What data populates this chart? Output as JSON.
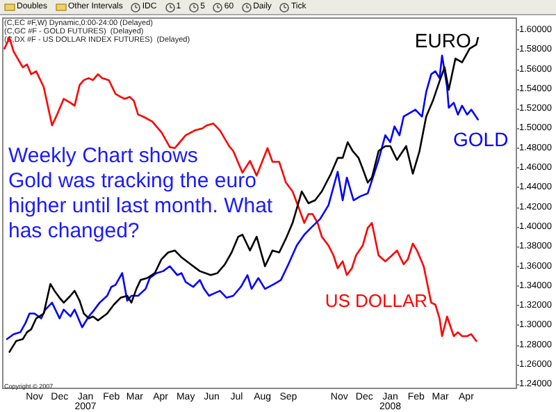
{
  "chart_data": {
    "type": "line",
    "annotations": [
      "(C,EC #F,W) Dynamic,0:00-24:00 (Delayed)",
      "(C,GC #F - GOLD FUTURES)  (Delayed)",
      "(C,DX #F - US DOLLAR INDEX FUTURES)  (Delayed)",
      "Weekly Chart shows\nGold was tracking the euro\nhigher until last month. What\nhas changed?",
      "Copyright © 2007",
      "Doubles",
      "Other Intervals",
      "IDC",
      "1",
      "5",
      "60",
      "Daily",
      "Tick"
    ],
    "xlim": [
      "2006-09-24",
      "2008-05-31"
    ],
    "xticks": [
      {
        "value": "2006-11-01",
        "label": "Nov"
      },
      {
        "value": "2006-12-01",
        "label": "Dec"
      },
      {
        "value": "2007-01-01",
        "label": "Jan\n2007"
      },
      {
        "value": "2007-02-01",
        "label": "Feb"
      },
      {
        "value": "2007-03-01",
        "label": "Mar"
      },
      {
        "value": "2007-04-01",
        "label": "Apr"
      },
      {
        "value": "2007-05-01",
        "label": "May"
      },
      {
        "value": "2007-06-01",
        "label": "Jun"
      },
      {
        "value": "2007-07-01",
        "label": "Jul"
      },
      {
        "value": "2007-08-01",
        "label": "Aug"
      },
      {
        "value": "2007-09-01",
        "label": "Sep"
      },
      {
        "value": "2007-11-01",
        "label": "Nov"
      },
      {
        "value": "2007-12-01",
        "label": "Dec"
      },
      {
        "value": "2008-01-01",
        "label": "Jan\n2008"
      },
      {
        "value": "2008-02-01",
        "label": "Feb"
      },
      {
        "value": "2008-03-01",
        "label": "Mar"
      },
      {
        "value": "2008-04-01",
        "label": "Apr"
      }
    ],
    "ylim": [
      1.236,
      1.612
    ],
    "yticks": [
      {
        "value": 1.24,
        "label": "1.24000"
      },
      {
        "value": 1.26,
        "label": "1.26000"
      },
      {
        "value": 1.28,
        "label": "1.28000"
      },
      {
        "value": 1.3,
        "label": "1.30000"
      },
      {
        "value": 1.32,
        "label": "1.32000"
      },
      {
        "value": 1.34,
        "label": "1.34000"
      },
      {
        "value": 1.36,
        "label": "1.36000"
      },
      {
        "value": 1.38,
        "label": "1.38000"
      },
      {
        "value": 1.4,
        "label": "1.40000"
      },
      {
        "value": 1.42,
        "label": "1.42000"
      },
      {
        "value": 1.44,
        "label": "1.44000"
      },
      {
        "value": 1.46,
        "label": "1.46000"
      },
      {
        "value": 1.48,
        "label": "1.48000"
      },
      {
        "value": 1.5,
        "label": "1.50000"
      },
      {
        "value": 1.52,
        "label": "1.52000"
      },
      {
        "value": 1.54,
        "label": "1.54000"
      },
      {
        "value": 1.56,
        "label": "1.56000"
      },
      {
        "value": 1.58,
        "label": "1.58000"
      },
      {
        "value": 1.6,
        "label": "1.60000"
      }
    ],
    "grid": false,
    "series": [
      {
        "name": "EURO",
        "color": "#000000",
        "x": [
          "2006-10-02",
          "2006-10-10",
          "2006-10-18",
          "2006-10-23",
          "2006-10-28",
          "2006-11-03",
          "2006-11-12",
          "2006-11-20",
          "2006-11-25",
          "2006-12-01",
          "2006-12-06",
          "2006-12-14",
          "2006-12-19",
          "2006-12-25",
          "2006-12-30",
          "2007-01-05",
          "2007-01-10",
          "2007-01-16",
          "2007-01-27",
          "2007-02-04",
          "2007-02-12",
          "2007-02-20",
          "2007-02-25",
          "2007-03-03",
          "2007-03-08",
          "2007-03-16",
          "2007-03-25",
          "2007-04-02",
          "2007-04-10",
          "2007-04-18",
          "2007-04-26",
          "2007-05-07",
          "2007-05-18",
          "2007-05-31",
          "2007-06-08",
          "2007-06-17",
          "2007-06-25",
          "2007-07-03",
          "2007-07-08",
          "2007-07-17",
          "2007-07-25",
          "2007-08-04",
          "2007-08-13",
          "2007-08-21",
          "2007-08-29",
          "2007-09-06",
          "2007-09-17",
          "2007-09-25",
          "2007-10-03",
          "2007-10-11",
          "2007-10-22",
          "2007-10-30",
          "2007-11-05",
          "2007-11-11",
          "2007-11-17",
          "2007-11-24",
          "2007-11-29",
          "2007-12-05",
          "2007-12-10",
          "2007-12-18",
          "2007-12-26",
          "2008-01-01",
          "2008-01-09",
          "2008-01-20",
          "2008-01-28",
          "2008-02-05",
          "2008-02-13",
          "2008-02-21",
          "2008-02-29",
          "2008-03-06",
          "2008-03-11",
          "2008-03-19",
          "2008-03-27",
          "2008-04-05",
          "2008-04-13",
          "2008-04-15"
        ],
        "values": [
          1.273,
          1.284,
          1.286,
          1.293,
          1.296,
          1.307,
          1.312,
          1.342,
          1.335,
          1.328,
          1.323,
          1.33,
          1.335,
          1.325,
          1.312,
          1.307,
          1.309,
          1.305,
          1.312,
          1.321,
          1.328,
          1.33,
          1.323,
          1.337,
          1.346,
          1.348,
          1.353,
          1.367,
          1.374,
          1.376,
          1.369,
          1.362,
          1.355,
          1.351,
          1.353,
          1.362,
          1.374,
          1.39,
          1.392,
          1.376,
          1.39,
          1.36,
          1.376,
          1.374,
          1.388,
          1.404,
          1.436,
          1.424,
          1.427,
          1.436,
          1.454,
          1.47,
          1.47,
          1.486,
          1.477,
          1.47,
          1.459,
          1.445,
          1.45,
          1.477,
          1.482,
          1.482,
          1.468,
          1.482,
          1.454,
          1.477,
          1.512,
          1.528,
          1.548,
          1.562,
          1.539,
          1.571,
          1.567,
          1.581,
          1.585,
          1.592
        ]
      },
      {
        "name": "GOLD",
        "color": "#0000ff",
        "x": [
          "2006-09-29",
          "2006-10-07",
          "2006-10-15",
          "2006-10-21",
          "2006-10-26",
          "2006-11-01",
          "2006-11-09",
          "2006-11-14",
          "2006-11-22",
          "2006-12-01",
          "2006-12-06",
          "2006-12-14",
          "2006-12-19",
          "2006-12-28",
          "2007-01-05",
          "2007-01-10",
          "2007-01-18",
          "2007-01-27",
          "2007-02-01",
          "2007-02-06",
          "2007-02-14",
          "2007-02-20",
          "2007-02-25",
          "2007-03-05",
          "2007-03-14",
          "2007-03-19",
          "2007-03-27",
          "2007-04-04",
          "2007-04-12",
          "2007-04-21",
          "2007-04-26",
          "2007-05-01",
          "2007-05-10",
          "2007-05-18",
          "2007-05-23",
          "2007-05-29",
          "2007-06-03",
          "2007-06-11",
          "2007-06-19",
          "2007-06-27",
          "2007-07-06",
          "2007-07-14",
          "2007-07-19",
          "2007-07-27",
          "2007-08-04",
          "2007-08-15",
          "2007-08-23",
          "2007-09-01",
          "2007-09-11",
          "2007-09-20",
          "2007-09-28",
          "2007-10-09",
          "2007-10-19",
          "2007-10-30",
          "2007-11-05",
          "2007-11-10",
          "2007-11-18",
          "2007-11-26",
          "2007-12-05",
          "2007-12-10",
          "2007-12-18",
          "2007-12-26",
          "2008-01-01",
          "2008-01-06",
          "2008-01-12",
          "2008-01-17",
          "2008-01-25",
          "2008-01-31",
          "2008-02-08",
          "2008-02-13",
          "2008-02-19",
          "2008-02-24",
          "2008-02-29",
          "2008-03-03",
          "2008-03-09",
          "2008-03-11",
          "2008-03-17",
          "2008-03-22",
          "2008-03-27",
          "2008-04-02",
          "2008-04-07",
          "2008-04-15"
        ],
        "values": [
          1.286,
          1.291,
          1.293,
          1.302,
          1.312,
          1.312,
          1.307,
          1.316,
          1.323,
          1.307,
          1.316,
          1.309,
          1.316,
          1.298,
          1.309,
          1.314,
          1.323,
          1.33,
          1.339,
          1.341,
          1.353,
          1.325,
          1.33,
          1.33,
          1.337,
          1.348,
          1.353,
          1.355,
          1.36,
          1.351,
          1.353,
          1.344,
          1.339,
          1.346,
          1.337,
          1.33,
          1.332,
          1.335,
          1.328,
          1.33,
          1.339,
          1.351,
          1.337,
          1.348,
          1.337,
          1.342,
          1.346,
          1.362,
          1.381,
          1.392,
          1.399,
          1.408,
          1.422,
          1.456,
          1.427,
          1.45,
          1.427,
          1.431,
          1.434,
          1.447,
          1.468,
          1.493,
          1.486,
          1.502,
          1.493,
          1.512,
          1.516,
          1.519,
          1.512,
          1.537,
          1.555,
          1.558,
          1.551,
          1.574,
          1.542,
          1.521,
          1.526,
          1.514,
          1.523,
          1.514,
          1.519,
          1.509
        ]
      },
      {
        "name": "US DOLLAR",
        "color": "#ff0000",
        "x": [
          "2006-09-26",
          "2006-10-02",
          "2006-10-07",
          "2006-10-18",
          "2006-10-23",
          "2006-10-28",
          "2006-11-03",
          "2006-11-12",
          "2006-11-22",
          "2006-11-28",
          "2006-12-06",
          "2006-12-14",
          "2006-12-19",
          "2006-12-25",
          "2006-12-30",
          "2007-01-05",
          "2007-01-10",
          "2007-01-16",
          "2007-01-21",
          "2007-01-29",
          "2007-02-06",
          "2007-02-12",
          "2007-02-17",
          "2007-02-23",
          "2007-02-28",
          "2007-03-05",
          "2007-03-11",
          "2007-03-22",
          "2007-04-02",
          "2007-04-12",
          "2007-04-18",
          "2007-05-01",
          "2007-05-12",
          "2007-05-21",
          "2007-05-26",
          "2007-06-03",
          "2007-06-11",
          "2007-06-22",
          "2007-06-27",
          "2007-07-08",
          "2007-07-17",
          "2007-07-25",
          "2007-08-07",
          "2007-08-13",
          "2007-08-21",
          "2007-08-29",
          "2007-09-06",
          "2007-09-14",
          "2007-09-20",
          "2007-09-25",
          "2007-09-30",
          "2007-10-06",
          "2007-10-11",
          "2007-10-19",
          "2007-10-25",
          "2007-10-30",
          "2007-11-05",
          "2007-11-10",
          "2007-11-16",
          "2007-11-21",
          "2007-11-29",
          "2007-12-05",
          "2007-12-10",
          "2007-12-18",
          "2007-12-26",
          "2008-01-03",
          "2008-01-09",
          "2008-01-17",
          "2008-01-22",
          "2008-01-28",
          "2008-02-02",
          "2008-02-10",
          "2008-02-19",
          "2008-02-24",
          "2008-02-29",
          "2008-03-03",
          "2008-03-09",
          "2008-03-17",
          "2008-03-22",
          "2008-03-27",
          "2008-04-02",
          "2008-04-07",
          "2008-04-13"
        ],
        "values": [
          1.581,
          1.592,
          1.578,
          1.562,
          1.565,
          1.555,
          1.558,
          1.542,
          1.503,
          1.514,
          1.53,
          1.526,
          1.523,
          1.544,
          1.549,
          1.551,
          1.549,
          1.555,
          1.551,
          1.549,
          1.535,
          1.532,
          1.53,
          1.532,
          1.528,
          1.514,
          1.512,
          1.507,
          1.496,
          1.481,
          1.48,
          1.493,
          1.498,
          1.5,
          1.503,
          1.505,
          1.498,
          1.482,
          1.477,
          1.455,
          1.467,
          1.452,
          1.48,
          1.466,
          1.466,
          1.445,
          1.436,
          1.418,
          1.404,
          1.413,
          1.413,
          1.404,
          1.39,
          1.381,
          1.371,
          1.358,
          1.365,
          1.351,
          1.358,
          1.371,
          1.381,
          1.399,
          1.404,
          1.371,
          1.365,
          1.371,
          1.376,
          1.362,
          1.367,
          1.383,
          1.376,
          1.36,
          1.323,
          1.321,
          1.307,
          1.289,
          1.309,
          1.289,
          1.293,
          1.289,
          1.289,
          1.291,
          1.284
        ]
      }
    ]
  }
}
